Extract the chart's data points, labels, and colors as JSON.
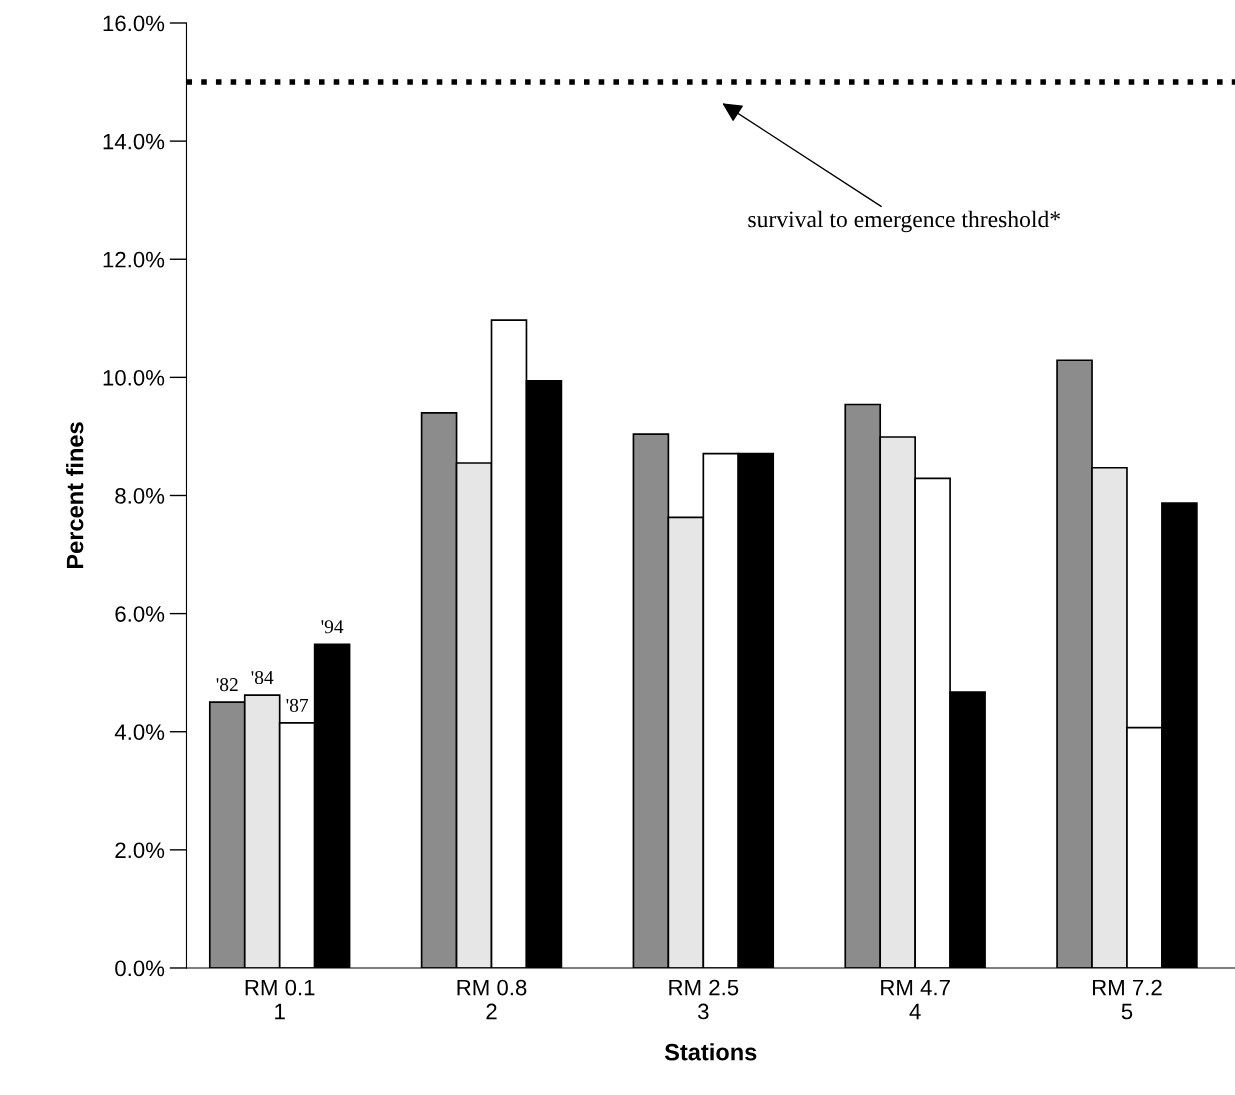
{
  "chart_data": {
    "type": "bar",
    "xlabel": "Stations",
    "ylabel": "Percent fines",
    "categories": [
      "RM 0.1\n1",
      "RM 0.8\n2",
      "RM 2.5\n3",
      "RM 4.7\n4",
      "RM 7.2\n5"
    ],
    "series": [
      {
        "name": "'82",
        "color": "#8c8c8c",
        "values": [
          4.5,
          9.4,
          9.04,
          9.54,
          10.29
        ]
      },
      {
        "name": "'84",
        "color": "#e6e6e6",
        "values": [
          4.62,
          8.55,
          7.63,
          8.99,
          8.47
        ]
      },
      {
        "name": "'87",
        "color": "#ffffff",
        "values": [
          4.15,
          10.97,
          8.71,
          8.29,
          4.07
        ]
      },
      {
        "name": "'94",
        "color": "#000000",
        "values": [
          5.48,
          9.94,
          8.71,
          4.67,
          7.87
        ]
      }
    ],
    "ylim": [
      0,
      16
    ],
    "yticks": [
      {
        "value": 0,
        "label": "0.0%"
      },
      {
        "value": 2,
        "label": "2.0%"
      },
      {
        "value": 4,
        "label": "4.0%"
      },
      {
        "value": 6,
        "label": "6.0%"
      },
      {
        "value": 8,
        "label": "8.0%"
      },
      {
        "value": 10,
        "label": "10.0%"
      },
      {
        "value": 12,
        "label": "12.0%"
      },
      {
        "value": 14,
        "label": "14.0%"
      },
      {
        "value": 16,
        "label": "16.0%"
      }
    ],
    "ref_lines": [
      {
        "axis": "y",
        "value": 15,
        "color": "#000000",
        "line_style": "dotted"
      }
    ],
    "annotations": [
      "survival to emergence threshold*"
    ],
    "grid": false,
    "legend": false
  }
}
